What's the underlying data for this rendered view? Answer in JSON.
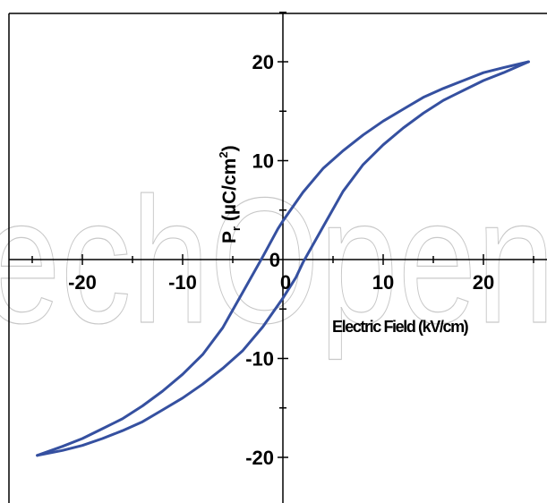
{
  "watermark": "echOpen",
  "chart_data": {
    "type": "line",
    "title": "",
    "xlabel": "Electric Field (kV/cm)",
    "ylabel": "P",
    "ylabel_sub": "r",
    "ylabel_units_prefix": " (µC/cm",
    "ylabel_units_sup": "2",
    "ylabel_units_suffix": ")",
    "xlim": [
      -25.5,
      26
    ],
    "ylim": [
      -25,
      25
    ],
    "xticks": [
      -20,
      -10,
      0,
      10,
      20
    ],
    "xtick_labels": [
      "-20",
      "-10",
      "0",
      "10",
      "20"
    ],
    "yticks": [
      -20,
      -10,
      0,
      10,
      20
    ],
    "ytick_labels": [
      "-20",
      "-10",
      "0",
      "10",
      "20"
    ],
    "grid": false,
    "series": [
      {
        "color": "#3550a0",
        "points": [
          [
            24.5,
            20.0
          ],
          [
            22,
            19.4
          ],
          [
            20,
            18.9
          ],
          [
            18,
            18.1
          ],
          [
            16,
            17.3
          ],
          [
            14,
            16.4
          ],
          [
            12,
            15.2
          ],
          [
            10,
            14.0
          ],
          [
            8,
            12.6
          ],
          [
            6,
            11.0
          ],
          [
            4,
            9.2
          ],
          [
            2,
            6.8
          ],
          [
            0,
            3.9
          ],
          [
            -0.5,
            3.1
          ],
          [
            -2,
            0.3
          ],
          [
            -4,
            -3.3
          ],
          [
            -6,
            -6.9
          ],
          [
            -8,
            -9.6
          ],
          [
            -10,
            -11.6
          ],
          [
            -12,
            -13.3
          ],
          [
            -14,
            -14.8
          ],
          [
            -16,
            -16.1
          ],
          [
            -18,
            -17.1
          ],
          [
            -20,
            -18.1
          ],
          [
            -22,
            -18.9
          ],
          [
            -24.5,
            -19.8
          ]
        ]
      },
      {
        "color": "#3550a0",
        "points": [
          [
            -24.5,
            -19.8
          ],
          [
            -22,
            -19.3
          ],
          [
            -20,
            -18.8
          ],
          [
            -18,
            -18.1
          ],
          [
            -16,
            -17.3
          ],
          [
            -14,
            -16.4
          ],
          [
            -12,
            -15.2
          ],
          [
            -10,
            -14.0
          ],
          [
            -8,
            -12.6
          ],
          [
            -6,
            -11.0
          ],
          [
            -4,
            -9.2
          ],
          [
            -2,
            -6.8
          ],
          [
            0,
            -3.9
          ],
          [
            1.3,
            -1.8
          ],
          [
            2,
            -0.3
          ],
          [
            4,
            3.3
          ],
          [
            6,
            6.9
          ],
          [
            8,
            9.6
          ],
          [
            10,
            11.6
          ],
          [
            12,
            13.3
          ],
          [
            14,
            14.8
          ],
          [
            16,
            16.1
          ],
          [
            18,
            17.1
          ],
          [
            20,
            18.1
          ],
          [
            22,
            18.9
          ],
          [
            24.5,
            20.0
          ]
        ]
      }
    ]
  }
}
